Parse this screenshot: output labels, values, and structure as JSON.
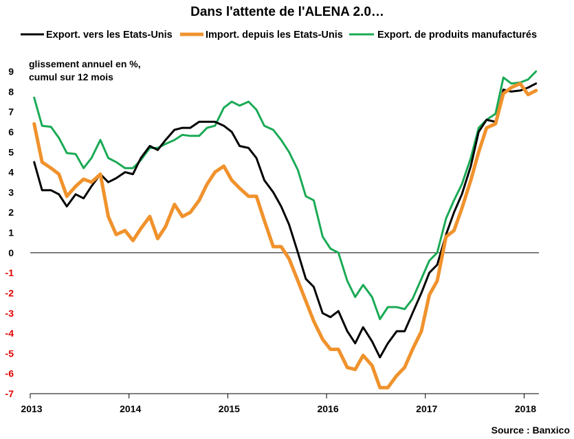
{
  "chart_data": {
    "type": "line",
    "title": "Dans l'attente de l'ALENA 2.0…",
    "ylabel_line1": "glissement  annuel en %,",
    "ylabel_line2": "cumul sur 12 mois",
    "source": "Source : Banxico",
    "ylim": [
      -7,
      9
    ],
    "xlim": [
      2013,
      2018.15
    ],
    "y_ticks": [
      "9",
      "8",
      "7",
      "6",
      "5",
      "4",
      "3",
      "2",
      "1",
      "0",
      "-1",
      "-2",
      "-3",
      "-4",
      "-5",
      "-6",
      "-7"
    ],
    "x_ticks": [
      "2013",
      "2014",
      "2015",
      "2016",
      "2017",
      "2018"
    ],
    "negative_tick_color": "#e00000",
    "positive_tick_color": "#000000",
    "grid": false,
    "legend_position": "top",
    "series": [
      {
        "name": "Export. vers les Etats-Unis",
        "color": "#000000",
        "points": [
          [
            2013.04,
            4.5
          ],
          [
            2013.12,
            3.1
          ],
          [
            2013.21,
            3.1
          ],
          [
            2013.29,
            2.9
          ],
          [
            2013.37,
            2.3
          ],
          [
            2013.46,
            2.9
          ],
          [
            2013.54,
            2.7
          ],
          [
            2013.62,
            3.3
          ],
          [
            2013.71,
            3.9
          ],
          [
            2013.79,
            3.5
          ],
          [
            2013.87,
            3.7
          ],
          [
            2013.96,
            4.0
          ],
          [
            2014.04,
            3.9
          ],
          [
            2014.12,
            4.7
          ],
          [
            2014.21,
            5.3
          ],
          [
            2014.29,
            5.1
          ],
          [
            2014.37,
            5.6
          ],
          [
            2014.46,
            6.1
          ],
          [
            2014.54,
            6.2
          ],
          [
            2014.62,
            6.2
          ],
          [
            2014.71,
            6.5
          ],
          [
            2014.79,
            6.5
          ],
          [
            2014.87,
            6.5
          ],
          [
            2014.96,
            6.3
          ],
          [
            2015.04,
            6.0
          ],
          [
            2015.12,
            5.3
          ],
          [
            2015.21,
            5.2
          ],
          [
            2015.29,
            4.7
          ],
          [
            2015.37,
            3.6
          ],
          [
            2015.46,
            3.0
          ],
          [
            2015.54,
            2.3
          ],
          [
            2015.62,
            1.4
          ],
          [
            2015.71,
            0.0
          ],
          [
            2015.79,
            -1.3
          ],
          [
            2015.87,
            -1.7
          ],
          [
            2015.96,
            -3.0
          ],
          [
            2016.04,
            -3.2
          ],
          [
            2016.12,
            -2.9
          ],
          [
            2016.21,
            -3.9
          ],
          [
            2016.29,
            -4.5
          ],
          [
            2016.37,
            -3.7
          ],
          [
            2016.46,
            -4.4
          ],
          [
            2016.54,
            -5.2
          ],
          [
            2016.62,
            -4.5
          ],
          [
            2016.71,
            -3.9
          ],
          [
            2016.79,
            -3.9
          ],
          [
            2016.87,
            -3.0
          ],
          [
            2016.96,
            -2.0
          ],
          [
            2017.04,
            -1.0
          ],
          [
            2017.12,
            -0.6
          ],
          [
            2017.21,
            0.9
          ],
          [
            2017.29,
            2.0
          ],
          [
            2017.37,
            2.9
          ],
          [
            2017.46,
            4.3
          ],
          [
            2017.54,
            6.0
          ],
          [
            2017.62,
            6.6
          ],
          [
            2017.71,
            6.5
          ],
          [
            2017.79,
            8.1
          ],
          [
            2017.87,
            8.0
          ],
          [
            2017.96,
            8.05
          ],
          [
            2018.04,
            8.2
          ],
          [
            2018.12,
            8.4
          ]
        ]
      },
      {
        "name": "Import. depuis les Etats-Unis",
        "color": "#f0922c",
        "points": [
          [
            2013.04,
            6.4
          ],
          [
            2013.12,
            4.5
          ],
          [
            2013.21,
            4.2
          ],
          [
            2013.29,
            3.9
          ],
          [
            2013.37,
            2.8
          ],
          [
            2013.46,
            3.3
          ],
          [
            2013.54,
            3.65
          ],
          [
            2013.62,
            3.5
          ],
          [
            2013.71,
            3.9
          ],
          [
            2013.79,
            1.8
          ],
          [
            2013.87,
            0.9
          ],
          [
            2013.96,
            1.1
          ],
          [
            2014.04,
            0.6
          ],
          [
            2014.12,
            1.2
          ],
          [
            2014.21,
            1.8
          ],
          [
            2014.29,
            0.7
          ],
          [
            2014.37,
            1.3
          ],
          [
            2014.46,
            2.4
          ],
          [
            2014.54,
            1.8
          ],
          [
            2014.62,
            2.0
          ],
          [
            2014.71,
            2.6
          ],
          [
            2014.79,
            3.4
          ],
          [
            2014.87,
            4.0
          ],
          [
            2014.96,
            4.3
          ],
          [
            2015.04,
            3.6
          ],
          [
            2015.12,
            3.2
          ],
          [
            2015.21,
            2.8
          ],
          [
            2015.29,
            2.8
          ],
          [
            2015.37,
            1.6
          ],
          [
            2015.46,
            0.3
          ],
          [
            2015.54,
            0.3
          ],
          [
            2015.62,
            -0.3
          ],
          [
            2015.71,
            -1.4
          ],
          [
            2015.79,
            -2.4
          ],
          [
            2015.87,
            -3.4
          ],
          [
            2015.96,
            -4.3
          ],
          [
            2016.04,
            -4.8
          ],
          [
            2016.12,
            -4.8
          ],
          [
            2016.21,
            -5.7
          ],
          [
            2016.29,
            -5.8
          ],
          [
            2016.37,
            -5.1
          ],
          [
            2016.46,
            -5.6
          ],
          [
            2016.54,
            -6.7
          ],
          [
            2016.62,
            -6.7
          ],
          [
            2016.71,
            -6.1
          ],
          [
            2016.79,
            -5.7
          ],
          [
            2016.87,
            -4.8
          ],
          [
            2016.96,
            -3.9
          ],
          [
            2017.04,
            -2.1
          ],
          [
            2017.12,
            -1.4
          ],
          [
            2017.21,
            0.8
          ],
          [
            2017.29,
            1.1
          ],
          [
            2017.37,
            2.2
          ],
          [
            2017.46,
            3.6
          ],
          [
            2017.54,
            5.0
          ],
          [
            2017.62,
            6.2
          ],
          [
            2017.71,
            6.4
          ],
          [
            2017.79,
            7.9
          ],
          [
            2017.87,
            8.2
          ],
          [
            2017.96,
            8.4
          ],
          [
            2018.04,
            7.85
          ],
          [
            2018.12,
            8.05
          ]
        ]
      },
      {
        "name": "Export. de produits manufacturés",
        "color": "#1aaa55",
        "points": [
          [
            2013.04,
            7.7
          ],
          [
            2013.12,
            6.3
          ],
          [
            2013.21,
            6.25
          ],
          [
            2013.29,
            5.7
          ],
          [
            2013.37,
            4.95
          ],
          [
            2013.46,
            4.9
          ],
          [
            2013.54,
            4.2
          ],
          [
            2013.62,
            4.7
          ],
          [
            2013.71,
            5.6
          ],
          [
            2013.79,
            4.7
          ],
          [
            2013.87,
            4.5
          ],
          [
            2013.96,
            4.2
          ],
          [
            2014.04,
            4.2
          ],
          [
            2014.12,
            4.6
          ],
          [
            2014.21,
            5.2
          ],
          [
            2014.29,
            5.2
          ],
          [
            2014.37,
            5.4
          ],
          [
            2014.46,
            5.6
          ],
          [
            2014.54,
            5.85
          ],
          [
            2014.62,
            5.8
          ],
          [
            2014.71,
            5.8
          ],
          [
            2014.79,
            6.2
          ],
          [
            2014.87,
            6.3
          ],
          [
            2014.96,
            7.2
          ],
          [
            2015.04,
            7.5
          ],
          [
            2015.12,
            7.3
          ],
          [
            2015.21,
            7.5
          ],
          [
            2015.29,
            7.1
          ],
          [
            2015.37,
            6.3
          ],
          [
            2015.46,
            6.1
          ],
          [
            2015.54,
            5.6
          ],
          [
            2015.62,
            5.0
          ],
          [
            2015.71,
            4.1
          ],
          [
            2015.79,
            2.8
          ],
          [
            2015.87,
            2.6
          ],
          [
            2015.96,
            0.8
          ],
          [
            2016.04,
            0.2
          ],
          [
            2016.12,
            0.0
          ],
          [
            2016.21,
            -1.4
          ],
          [
            2016.29,
            -2.2
          ],
          [
            2016.37,
            -1.6
          ],
          [
            2016.46,
            -2.2
          ],
          [
            2016.54,
            -3.3
          ],
          [
            2016.62,
            -2.7
          ],
          [
            2016.71,
            -2.7
          ],
          [
            2016.79,
            -2.8
          ],
          [
            2016.87,
            -2.3
          ],
          [
            2016.96,
            -1.3
          ],
          [
            2017.04,
            -0.4
          ],
          [
            2017.12,
            0.0
          ],
          [
            2017.21,
            1.7
          ],
          [
            2017.29,
            2.6
          ],
          [
            2017.37,
            3.4
          ],
          [
            2017.46,
            4.7
          ],
          [
            2017.54,
            6.2
          ],
          [
            2017.62,
            6.6
          ],
          [
            2017.71,
            6.9
          ],
          [
            2017.79,
            8.7
          ],
          [
            2017.87,
            8.4
          ],
          [
            2017.96,
            8.45
          ],
          [
            2018.04,
            8.6
          ],
          [
            2018.12,
            9.0
          ]
        ]
      }
    ]
  }
}
